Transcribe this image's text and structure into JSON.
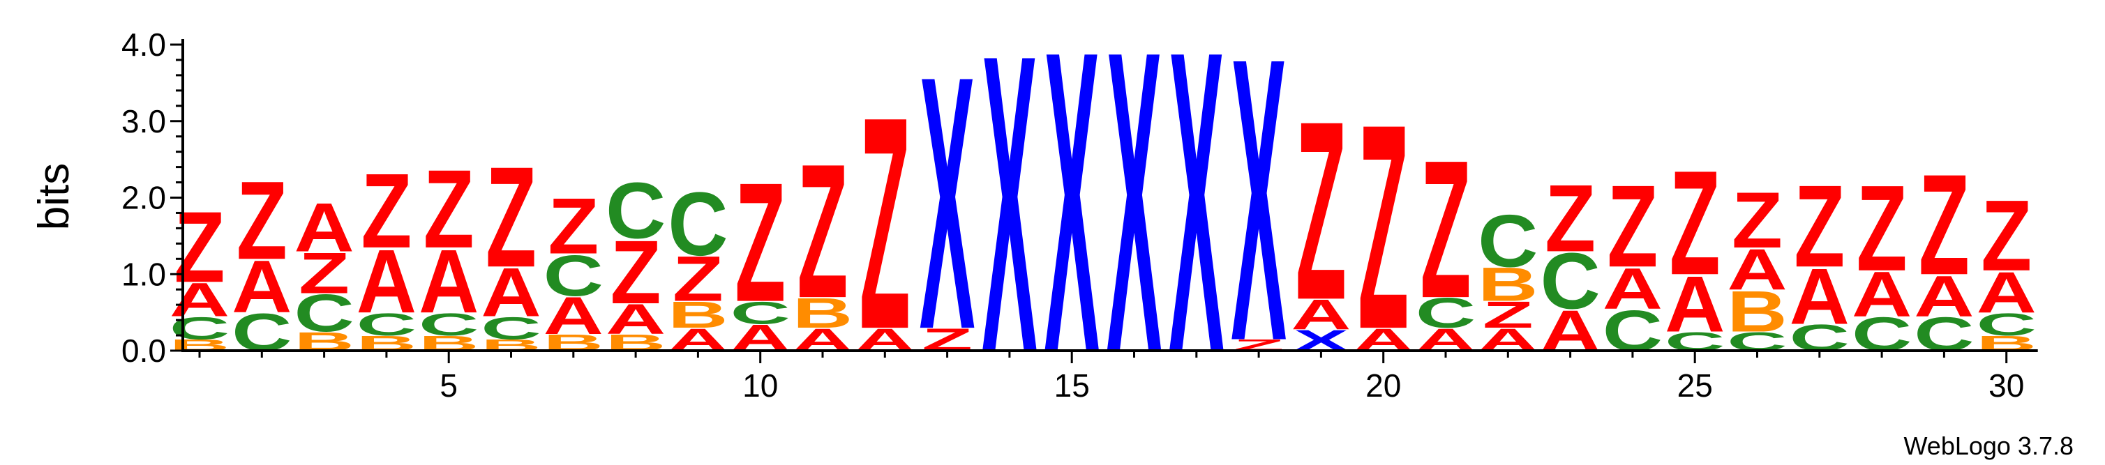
{
  "chart_data": {
    "type": "sequence-logo",
    "ylabel": "bits",
    "ylim": [
      0,
      4.0
    ],
    "y_ticks": [
      "0.0",
      "1.0",
      "2.0",
      "3.0",
      "4.0"
    ],
    "x_ticks": [
      "5",
      "10",
      "15",
      "20",
      "25",
      "30"
    ],
    "x_tick_values": [
      5,
      10,
      15,
      20,
      25,
      30
    ],
    "x_range": [
      1,
      30
    ],
    "credit": "WebLogo 3.7.8",
    "colors": {
      "Z": "#ff0000",
      "A": "#ff0000",
      "C": "#228b22",
      "B": "#ff8c00",
      "X": "#0000ff"
    },
    "positions": [
      {
        "pos": 1,
        "stack": [
          [
            "B",
            0.15
          ],
          [
            "C",
            0.3
          ],
          [
            "A",
            0.45
          ],
          [
            "Z",
            0.95
          ]
        ]
      },
      {
        "pos": 2,
        "stack": [
          [
            "C",
            0.5
          ],
          [
            "A",
            0.7
          ],
          [
            "Z",
            1.05
          ]
        ]
      },
      {
        "pos": 3,
        "stack": [
          [
            "B",
            0.25
          ],
          [
            "C",
            0.5
          ],
          [
            "Z",
            0.55
          ],
          [
            "A",
            0.65
          ]
        ]
      },
      {
        "pos": 4,
        "stack": [
          [
            "B",
            0.2
          ],
          [
            "C",
            0.3
          ],
          [
            "A",
            0.85
          ],
          [
            "Z",
            1.0
          ]
        ]
      },
      {
        "pos": 5,
        "stack": [
          [
            "B",
            0.2
          ],
          [
            "C",
            0.3
          ],
          [
            "A",
            0.85
          ],
          [
            "Z",
            1.05
          ]
        ]
      },
      {
        "pos": 6,
        "stack": [
          [
            "B",
            0.15
          ],
          [
            "C",
            0.3
          ],
          [
            "A",
            0.65
          ],
          [
            "Z",
            1.35
          ]
        ]
      },
      {
        "pos": 7,
        "stack": [
          [
            "B",
            0.22
          ],
          [
            "A",
            0.5
          ],
          [
            "C",
            0.55
          ],
          [
            "Z",
            0.75
          ]
        ]
      },
      {
        "pos": 8,
        "stack": [
          [
            "B",
            0.22
          ],
          [
            "A",
            0.4
          ],
          [
            "Z",
            0.85
          ],
          [
            "C",
            0.75
          ]
        ]
      },
      {
        "pos": 9,
        "stack": [
          [
            "A",
            0.3
          ],
          [
            "B",
            0.35
          ],
          [
            "Z",
            0.6
          ],
          [
            "C",
            0.85
          ]
        ]
      },
      {
        "pos": 10,
        "stack": [
          [
            "A",
            0.35
          ],
          [
            "C",
            0.3
          ],
          [
            "Z",
            1.6
          ]
        ]
      },
      {
        "pos": 11,
        "stack": [
          [
            "A",
            0.3
          ],
          [
            "B",
            0.4
          ],
          [
            "Z",
            1.8
          ]
        ]
      },
      {
        "pos": 12,
        "stack": [
          [
            "A",
            0.3
          ],
          [
            "Z",
            2.85
          ]
        ]
      },
      {
        "pos": 13,
        "stack": [
          [
            "Z",
            0.3
          ],
          [
            "X",
            3.4
          ]
        ]
      },
      {
        "pos": 14,
        "stack": [
          [
            "X",
            4.0
          ]
        ]
      },
      {
        "pos": 15,
        "stack": [
          [
            "X",
            4.05
          ]
        ]
      },
      {
        "pos": 16,
        "stack": [
          [
            "X",
            4.05
          ]
        ]
      },
      {
        "pos": 17,
        "stack": [
          [
            "X",
            4.05
          ]
        ]
      },
      {
        "pos": 18,
        "stack": [
          [
            "Z",
            0.15
          ],
          [
            "X",
            3.8
          ]
        ]
      },
      {
        "pos": 19,
        "stack": [
          [
            "X",
            0.28
          ],
          [
            "A",
            0.4
          ],
          [
            "Z",
            2.4
          ]
        ]
      },
      {
        "pos": 20,
        "stack": [
          [
            "A",
            0.3
          ],
          [
            "Z",
            2.75
          ]
        ]
      },
      {
        "pos": 21,
        "stack": [
          [
            "A",
            0.3
          ],
          [
            "C",
            0.4
          ],
          [
            "Z",
            1.85
          ]
        ]
      },
      {
        "pos": 22,
        "stack": [
          [
            "A",
            0.3
          ],
          [
            "Z",
            0.35
          ],
          [
            "B",
            0.45
          ],
          [
            "C",
            0.7
          ]
        ]
      },
      {
        "pos": 23,
        "stack": [
          [
            "A",
            0.55
          ],
          [
            "C",
            0.75
          ],
          [
            "Z",
            0.9
          ]
        ]
      },
      {
        "pos": 24,
        "stack": [
          [
            "C",
            0.55
          ],
          [
            "A",
            0.55
          ],
          [
            "Z",
            1.1
          ]
        ]
      },
      {
        "pos": 25,
        "stack": [
          [
            "C",
            0.25
          ],
          [
            "A",
            0.75
          ],
          [
            "Z",
            1.4
          ]
        ]
      },
      {
        "pos": 26,
        "stack": [
          [
            "C",
            0.25
          ],
          [
            "B",
            0.55
          ],
          [
            "A",
            0.55
          ],
          [
            "Z",
            0.75
          ]
        ]
      },
      {
        "pos": 27,
        "stack": [
          [
            "C",
            0.35
          ],
          [
            "A",
            0.75
          ],
          [
            "Z",
            1.1
          ]
        ]
      },
      {
        "pos": 28,
        "stack": [
          [
            "C",
            0.45
          ],
          [
            "A",
            0.6
          ],
          [
            "Z",
            1.15
          ]
        ]
      },
      {
        "pos": 29,
        "stack": [
          [
            "C",
            0.45
          ],
          [
            "A",
            0.55
          ],
          [
            "Z",
            1.35
          ]
        ]
      },
      {
        "pos": 30,
        "stack": [
          [
            "B",
            0.2
          ],
          [
            "C",
            0.3
          ],
          [
            "A",
            0.55
          ],
          [
            "Z",
            0.95
          ]
        ]
      }
    ]
  }
}
